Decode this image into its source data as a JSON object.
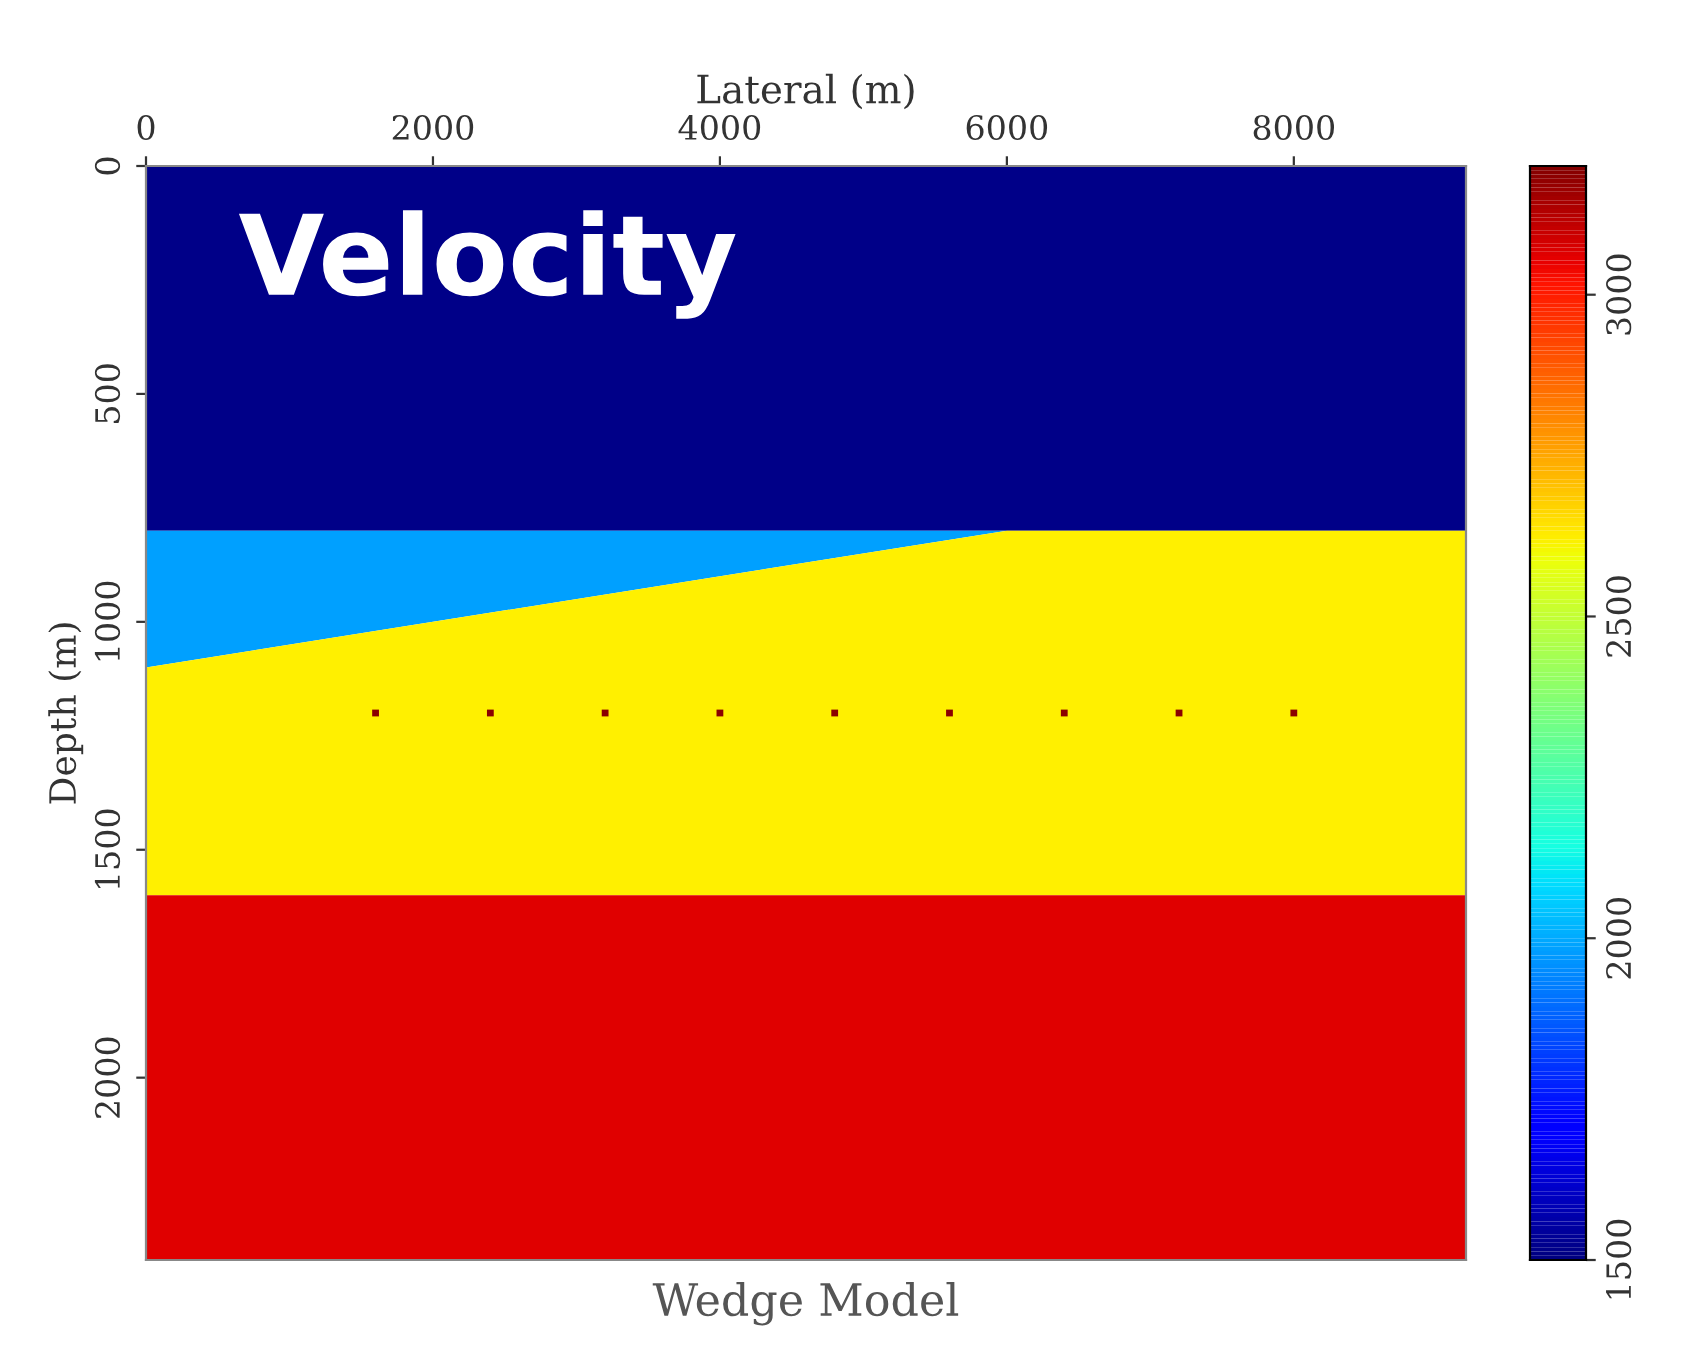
{
  "chart_data": {
    "type": "area",
    "stacked": true,
    "title": "Wedge Model",
    "xlabel": "Lateral (m)",
    "ylabel": "Depth (m)",
    "x": [
      0,
      6000,
      9200
    ],
    "series": [
      {
        "color": "#000088",
        "values": [
          800,
          800,
          800
        ]
      },
      {
        "color": "#00a0ff",
        "values": [
          300,
          0,
          0
        ]
      },
      {
        "color": "#fff000",
        "values": [
          500,
          800,
          800
        ]
      },
      {
        "color": "#e00000",
        "values": [
          800,
          800,
          800
        ]
      },
      {
        "type": "scatter",
        "color": "#8b0000",
        "marker": "square",
        "x": [
          1600,
          2400,
          3200,
          4000,
          4800,
          5600,
          6400,
          7200,
          8000
        ],
        "values": [
          1200,
          1200,
          1200,
          1200,
          1200,
          1200,
          1200,
          1200,
          1200
        ]
      }
    ],
    "xlim": [
      0,
      9200
    ],
    "xticks": [
      0,
      2000,
      4000,
      6000,
      8000
    ],
    "ylim": [
      2400,
      0
    ],
    "yticks": [
      0,
      500,
      1000,
      1500,
      2000
    ],
    "clim": [
      1500,
      3200
    ],
    "cticks": [
      1500,
      2000,
      2500,
      3000
    ],
    "annotations": [
      "Velocity"
    ],
    "grid": false,
    "legend": false
  }
}
